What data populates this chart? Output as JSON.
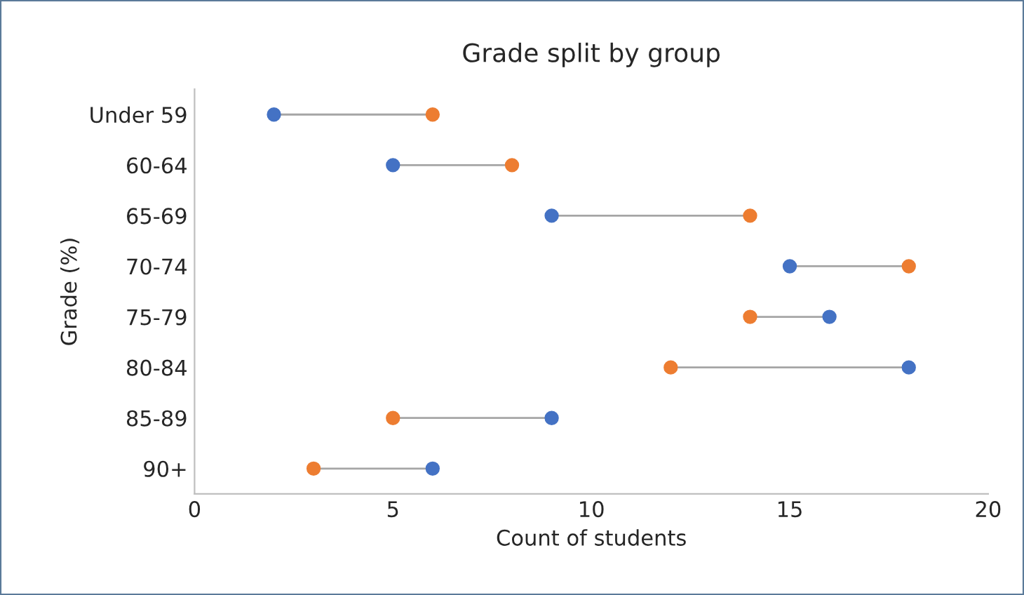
{
  "chart_data": {
    "type": "scatter",
    "orientation": "horizontal",
    "title": "Grade split by group",
    "xlabel": "Count of students",
    "ylabel": "Grade (%)",
    "categories": [
      "Under 59",
      "60-64",
      "65-69",
      "70-74",
      "75-79",
      "80-84",
      "85-89",
      "90+"
    ],
    "series": [
      {
        "color": "#4472c4",
        "values": [
          2,
          5,
          9,
          15,
          16,
          18,
          9,
          6
        ]
      },
      {
        "color": "#ed7d31",
        "values": [
          6,
          8,
          14,
          18,
          14,
          12,
          5,
          3
        ]
      }
    ],
    "xlim": [
      0,
      20
    ],
    "xticks": [
      0,
      5,
      10,
      15,
      20
    ],
    "grid": false,
    "marker": "circle"
  }
}
